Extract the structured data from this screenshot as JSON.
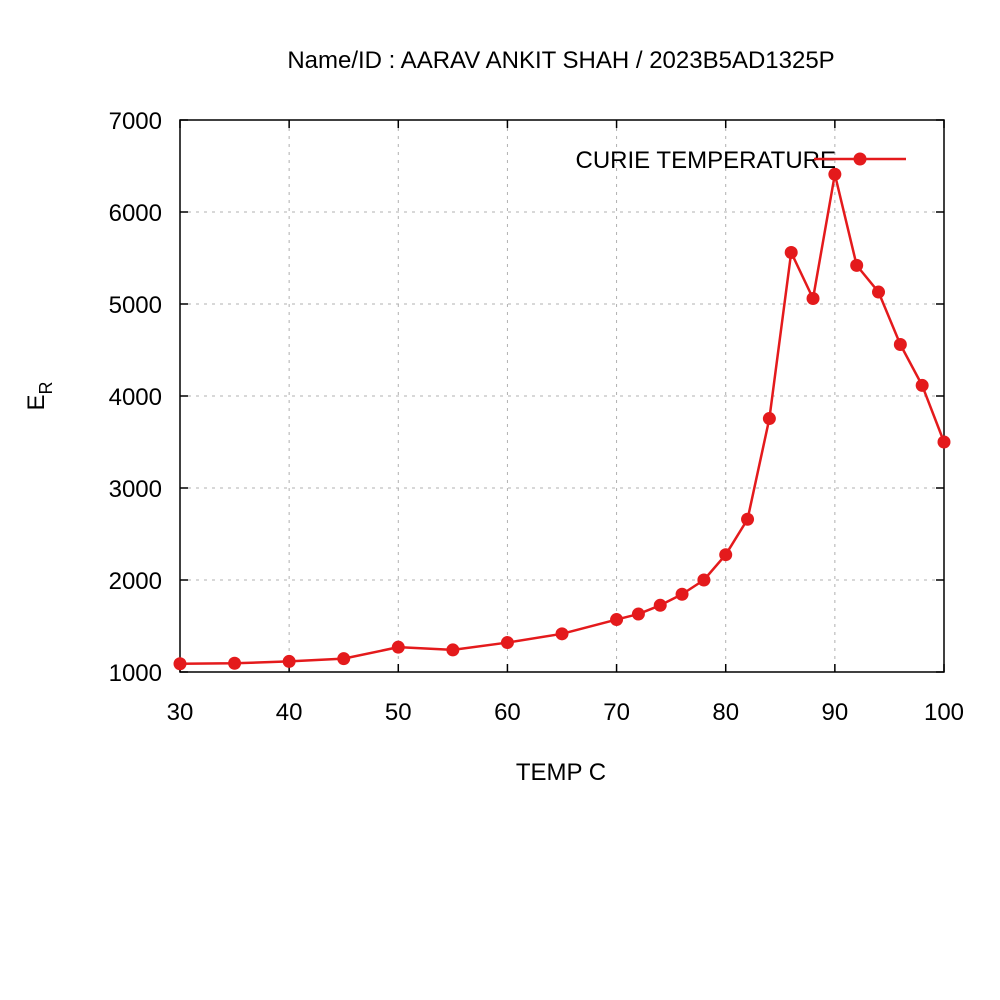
{
  "chart_data": {
    "type": "line",
    "title": "Name/ID : AARAV ANKIT SHAH / 2023B5AD1325P",
    "xlabel": "TEMP C",
    "ylabel_main": "E",
    "ylabel_sub": "R",
    "xlim": [
      30,
      100
    ],
    "ylim": [
      1000,
      7000
    ],
    "xticks": [
      30,
      40,
      50,
      60,
      70,
      80,
      90,
      100
    ],
    "yticks": [
      1000,
      2000,
      3000,
      4000,
      5000,
      6000,
      7000
    ],
    "grid": true,
    "legend_position": "top-right",
    "series": [
      {
        "name": "CURIE TEMPERATURE",
        "color": "#e41a1c",
        "x": [
          30,
          35,
          40,
          45,
          50,
          55,
          60,
          65,
          70,
          72,
          74,
          76,
          78,
          80,
          82,
          84,
          86,
          88,
          90,
          92,
          94,
          96,
          98,
          100
        ],
        "y": [
          1090,
          1095,
          1115,
          1145,
          1270,
          1240,
          1320,
          1415,
          1570,
          1630,
          1725,
          1845,
          2000,
          2275,
          2660,
          3755,
          5560,
          5060,
          6410,
          5420,
          5130,
          4560,
          4115,
          3500
        ]
      }
    ]
  }
}
